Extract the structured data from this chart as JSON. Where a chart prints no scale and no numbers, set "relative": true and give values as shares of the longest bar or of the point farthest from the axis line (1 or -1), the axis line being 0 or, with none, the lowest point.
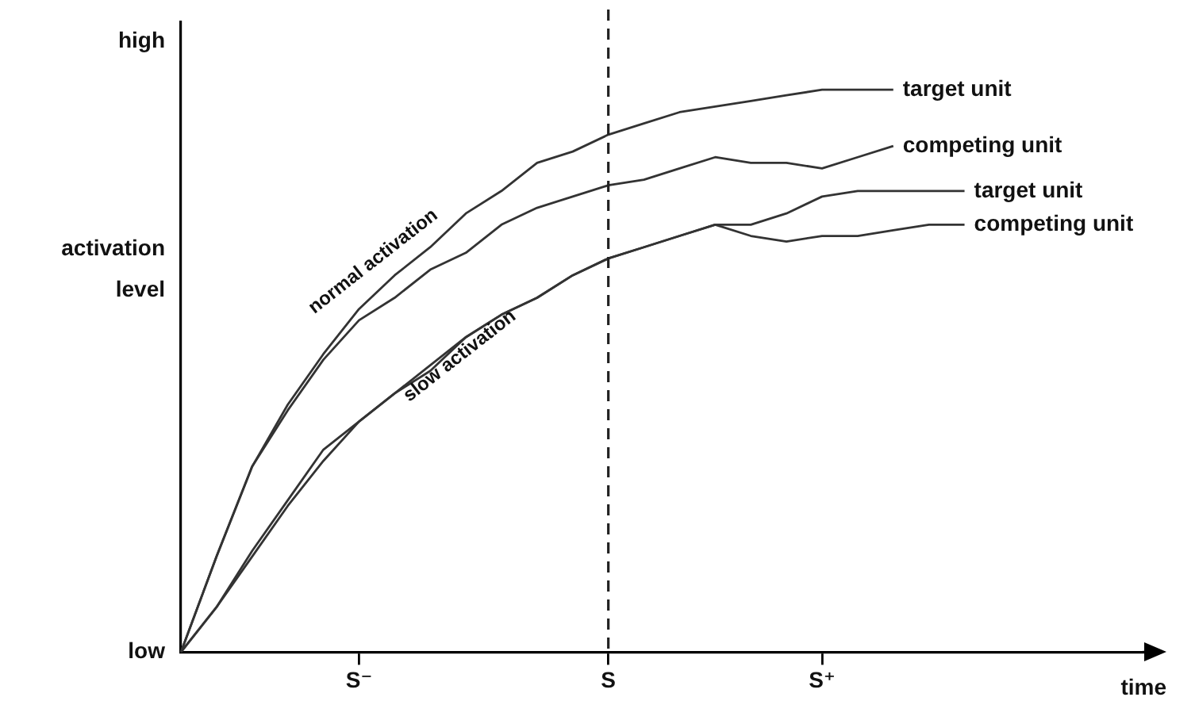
{
  "chart_data": {
    "type": "line",
    "relative": true,
    "xlabel": "time",
    "ylabel": "activation level",
    "categories": [
      null,
      null,
      null,
      null,
      null,
      "S⁻",
      null,
      null,
      null,
      null,
      null,
      null,
      "S",
      null,
      null,
      null,
      null,
      null,
      "S⁺",
      null,
      null,
      null,
      null,
      null,
      null,
      null,
      null,
      null
    ],
    "grid": false,
    "legend": false,
    "marker": "none",
    "line_style": "solid",
    "ref_lines": [
      {
        "axis": "x",
        "value": "S",
        "line_style": "dashed",
        "color": "#222222"
      }
    ],
    "annotations": [
      "high",
      "low",
      "normal activation",
      "slow activation"
    ],
    "series": [
      {
        "name": "target unit",
        "color": "#333333",
        "values": [
          0,
          0.17,
          0.33,
          0.44,
          0.53,
          0.61,
          0.67,
          0.72,
          0.78,
          0.82,
          0.87,
          0.89,
          0.92,
          0.94,
          0.96,
          0.97,
          0.98,
          0.99,
          1,
          1,
          1,
          null,
          null,
          null,
          null,
          null,
          null,
          null
        ]
      },
      {
        "name": "competing unit",
        "color": "#333333",
        "values": [
          0,
          0.17,
          0.33,
          0.43,
          0.52,
          0.59,
          0.63,
          0.68,
          0.71,
          0.76,
          0.79,
          0.81,
          0.83,
          0.84,
          0.86,
          0.88,
          0.87,
          0.87,
          0.86,
          0.88,
          0.9,
          null,
          null,
          null,
          null,
          null,
          null,
          null
        ]
      },
      {
        "name": "target unit",
        "color": "#333333",
        "values": [
          0,
          0.08,
          0.18,
          0.27,
          0.36,
          0.41,
          0.46,
          0.51,
          0.56,
          0.6,
          0.63,
          0.67,
          0.7,
          0.72,
          0.74,
          0.76,
          0.76,
          0.78,
          0.81,
          0.82,
          0.82,
          0.82,
          0.82,
          null,
          null,
          null,
          null,
          null
        ]
      },
      {
        "name": "competing unit",
        "color": "#333333",
        "values": [
          0,
          0.08,
          0.17,
          0.26,
          0.34,
          0.41,
          0.46,
          0.5,
          0.56,
          0.6,
          0.63,
          0.67,
          0.7,
          0.72,
          0.74,
          0.76,
          0.74,
          0.73,
          0.74,
          0.74,
          0.75,
          0.76,
          0.76,
          null,
          null,
          null,
          null,
          null
        ]
      }
    ]
  }
}
